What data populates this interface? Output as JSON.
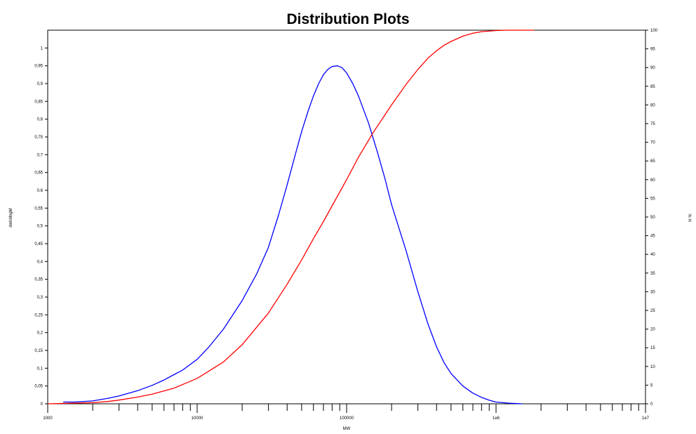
{
  "chart_data": {
    "type": "line",
    "title": "Distribution Plots",
    "xlabel": "MW",
    "ylabel": "dwt/dlogM",
    "y2label": "% H",
    "x_scale": "log",
    "xlim": [
      1000,
      10000000
    ],
    "ylim": [
      0,
      1.05
    ],
    "y2lim": [
      0,
      100
    ],
    "grid": false,
    "x_tick_labels": [
      "1000",
      "10000",
      "100000",
      "1e6",
      "1e7"
    ],
    "y_tick_labels": [
      "0",
      "0,05",
      "0,1",
      "0,15",
      "0,2",
      "0,25",
      "0,3",
      "0,35",
      "0,4",
      "0,45",
      "0,5",
      "0,55",
      "0,6",
      "0,65",
      "0,7",
      "0,75",
      "0,8",
      "0,85",
      "0,9",
      "0,95",
      "1"
    ],
    "y2_tick_labels": [
      "0",
      "5",
      "10",
      "15",
      "20",
      "25",
      "30",
      "35",
      "40",
      "45",
      "50",
      "55",
      "60",
      "65",
      "70",
      "75",
      "80",
      "85",
      "90",
      "95",
      "100"
    ],
    "series": [
      {
        "axis": "left",
        "color": "#0000ff",
        "x": [
          1270,
          1500,
          2000,
          2500,
          3000,
          4000,
          5000,
          6000,
          7000,
          8000,
          10000,
          12000,
          15000,
          20000,
          25000,
          30000,
          35000,
          40000,
          45000,
          50000,
          55000,
          60000,
          65000,
          70000,
          75000,
          80000,
          87000,
          93000,
          100000,
          110000,
          120000,
          140000,
          160000,
          180000,
          200000,
          250000,
          300000,
          350000,
          400000,
          450000,
          500000,
          600000,
          700000,
          800000,
          900000,
          1000000,
          1200000,
          1500000
        ],
        "y": [
          0.005,
          0.005,
          0.008,
          0.015,
          0.022,
          0.037,
          0.052,
          0.067,
          0.082,
          0.095,
          0.125,
          0.16,
          0.21,
          0.29,
          0.365,
          0.44,
          0.53,
          0.615,
          0.695,
          0.765,
          0.82,
          0.865,
          0.9,
          0.925,
          0.94,
          0.948,
          0.95,
          0.945,
          0.93,
          0.9,
          0.865,
          0.79,
          0.71,
          0.635,
          0.56,
          0.43,
          0.315,
          0.225,
          0.16,
          0.115,
          0.085,
          0.05,
          0.03,
          0.018,
          0.01,
          0.005,
          0.002,
          0.0
        ]
      },
      {
        "axis": "right",
        "color": "#ff0000",
        "x": [
          1000,
          2000,
          2500,
          3000,
          4000,
          5000,
          7000,
          10000,
          15000,
          20000,
          30000,
          40000,
          50000,
          60000,
          70000,
          80000,
          100000,
          120000,
          150000,
          200000,
          250000,
          300000,
          350000,
          400000,
          450000,
          500000,
          600000,
          700000,
          800000,
          1000000,
          1200000,
          1500000,
          1800000
        ],
        "y": [
          0,
          0.3,
          0.6,
          1.0,
          1.8,
          2.6,
          4.2,
          6.8,
          11.2,
          15.8,
          24.3,
          32.0,
          38.5,
          44.2,
          48.8,
          53.0,
          60.0,
          66.0,
          72.5,
          80.0,
          85.5,
          89.5,
          92.5,
          94.5,
          96.0,
          97.0,
          98.4,
          99.2,
          99.6,
          99.9,
          100,
          100,
          100
        ]
      }
    ]
  }
}
